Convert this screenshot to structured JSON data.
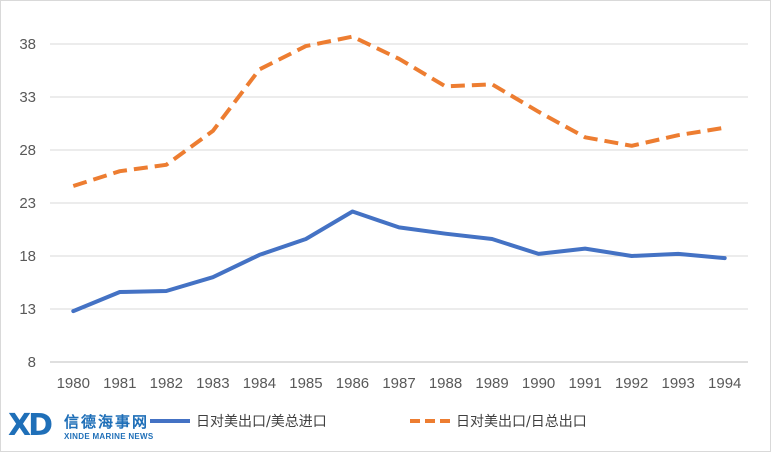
{
  "chart_data": {
    "type": "line",
    "title": "",
    "xlabel": "",
    "ylabel": "",
    "categories": [
      "1980",
      "1981",
      "1982",
      "1983",
      "1984",
      "1985",
      "1986",
      "1987",
      "1988",
      "1989",
      "1990",
      "1991",
      "1992",
      "1993",
      "1994"
    ],
    "yticks": [
      "8",
      "13",
      "18",
      "23",
      "28",
      "33",
      "38"
    ],
    "ylim": [
      8,
      40
    ],
    "grid": true,
    "legend_position": "bottom",
    "series": [
      {
        "name": "日对美出口/美总进口",
        "color": "#4472c4",
        "style": "solid",
        "values": [
          12.8,
          14.6,
          14.7,
          16.0,
          18.1,
          19.6,
          22.2,
          20.7,
          20.1,
          19.6,
          18.2,
          18.7,
          18.0,
          18.2,
          17.8
        ]
      },
      {
        "name": "日对美出口/日总出口",
        "color": "#ed7d31",
        "style": "dashed",
        "values": [
          24.6,
          26.0,
          26.6,
          29.8,
          35.6,
          37.8,
          38.7,
          36.6,
          34.0,
          34.2,
          31.6,
          29.2,
          28.4,
          29.4,
          30.1
        ]
      }
    ]
  },
  "watermark": {
    "logo_text": "XD",
    "name_cn": "信德海事网",
    "name_en": "XINDE MARINE NEWS"
  }
}
